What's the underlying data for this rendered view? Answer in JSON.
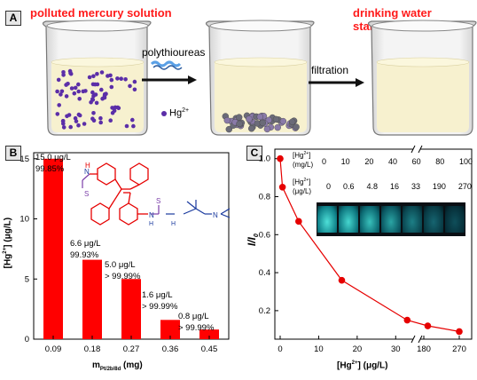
{
  "panelA": {
    "tag": "A",
    "left_title": "polluted mercury solution",
    "right_title": "drinking water standard",
    "arrow1_label": "polythioureas",
    "arrow2_label": "filtration",
    "legend_label": "Hg",
    "legend_sup": "2+"
  },
  "panelB": {
    "tag": "B",
    "ylabel_main": "[Hg",
    "ylabel_sup": "2+",
    "ylabel_tail": "] (μg/L)",
    "xlabel_main": "m",
    "xlabel_sub": "Pt/2b/8d",
    "xlabel_tail": " (mg)",
    "bar_labels": [
      {
        "conc": "15.0 μg/L",
        "removal": "99.85%"
      },
      {
        "conc": "6.6 μg/L",
        "removal": "99.93%"
      },
      {
        "conc": "5.0 μg/L",
        "removal": "> 99.99%"
      },
      {
        "conc": "1.6 μg/L",
        "removal": "> 99.99%"
      },
      {
        "conc": "0.8 μg/L",
        "removal": "> 99.99%"
      }
    ],
    "molecule_labels": {
      "s1": "S",
      "h1": "H",
      "n1": "N",
      "s2": "S",
      "n2": "N",
      "n3": "N",
      "h2": "H",
      "h3": "H"
    }
  },
  "panelC": {
    "tag": "C",
    "ylabel": "I/I",
    "ylabel_sub": "0",
    "xlabel_main": "[Hg",
    "xlabel_sup": "2+",
    "xlabel_tail": "] (μg/L)",
    "inset_row1_label": "[Hg",
    "inset_row1_sup": "2+",
    "inset_row1_tail": "]",
    "inset_row1_unit": "(mg/L)",
    "inset_row1_values": [
      "0",
      "10",
      "20",
      "40",
      "60",
      "80",
      "100"
    ],
    "inset_row2_label": "[Hg",
    "inset_row2_sup": "2+",
    "inset_row2_tail": "]",
    "inset_row2_unit": "(μg/L)",
    "inset_row2_values": [
      "0",
      "0.6",
      "4.8",
      "16",
      "33",
      "190",
      "270"
    ]
  },
  "chart_data": [
    {
      "type": "bar",
      "categories": [
        "0.09",
        "0.18",
        "0.27",
        "0.36",
        "0.45"
      ],
      "values": [
        15.0,
        6.6,
        5.0,
        1.6,
        0.8
      ],
      "xlabel": "m Pt/2b/8d (mg)",
      "ylabel": "[Hg2+] (μg/L)",
      "ylim": [
        0,
        15.5
      ],
      "yticks": [
        "0",
        "5",
        "10",
        "15"
      ],
      "bar_color": "#ff0000"
    },
    {
      "type": "line",
      "x_tick_labels": [
        "0",
        "10",
        "20",
        "30",
        "180",
        "270"
      ],
      "y_tick_labels": [
        "0.2",
        "0.4",
        "0.6",
        "0.8",
        "1.0"
      ],
      "x": [
        0,
        0.6,
        4.8,
        16,
        33,
        190,
        270
      ],
      "y": [
        1.0,
        0.85,
        0.67,
        0.36,
        0.15,
        0.12,
        0.09
      ],
      "ylim": [
        0.05,
        1.05
      ],
      "xlabel": "[Hg2+] (μg/L)",
      "ylabel": "I/I0",
      "axis_break": "x between 30 and 180",
      "color": "#e60000"
    }
  ]
}
